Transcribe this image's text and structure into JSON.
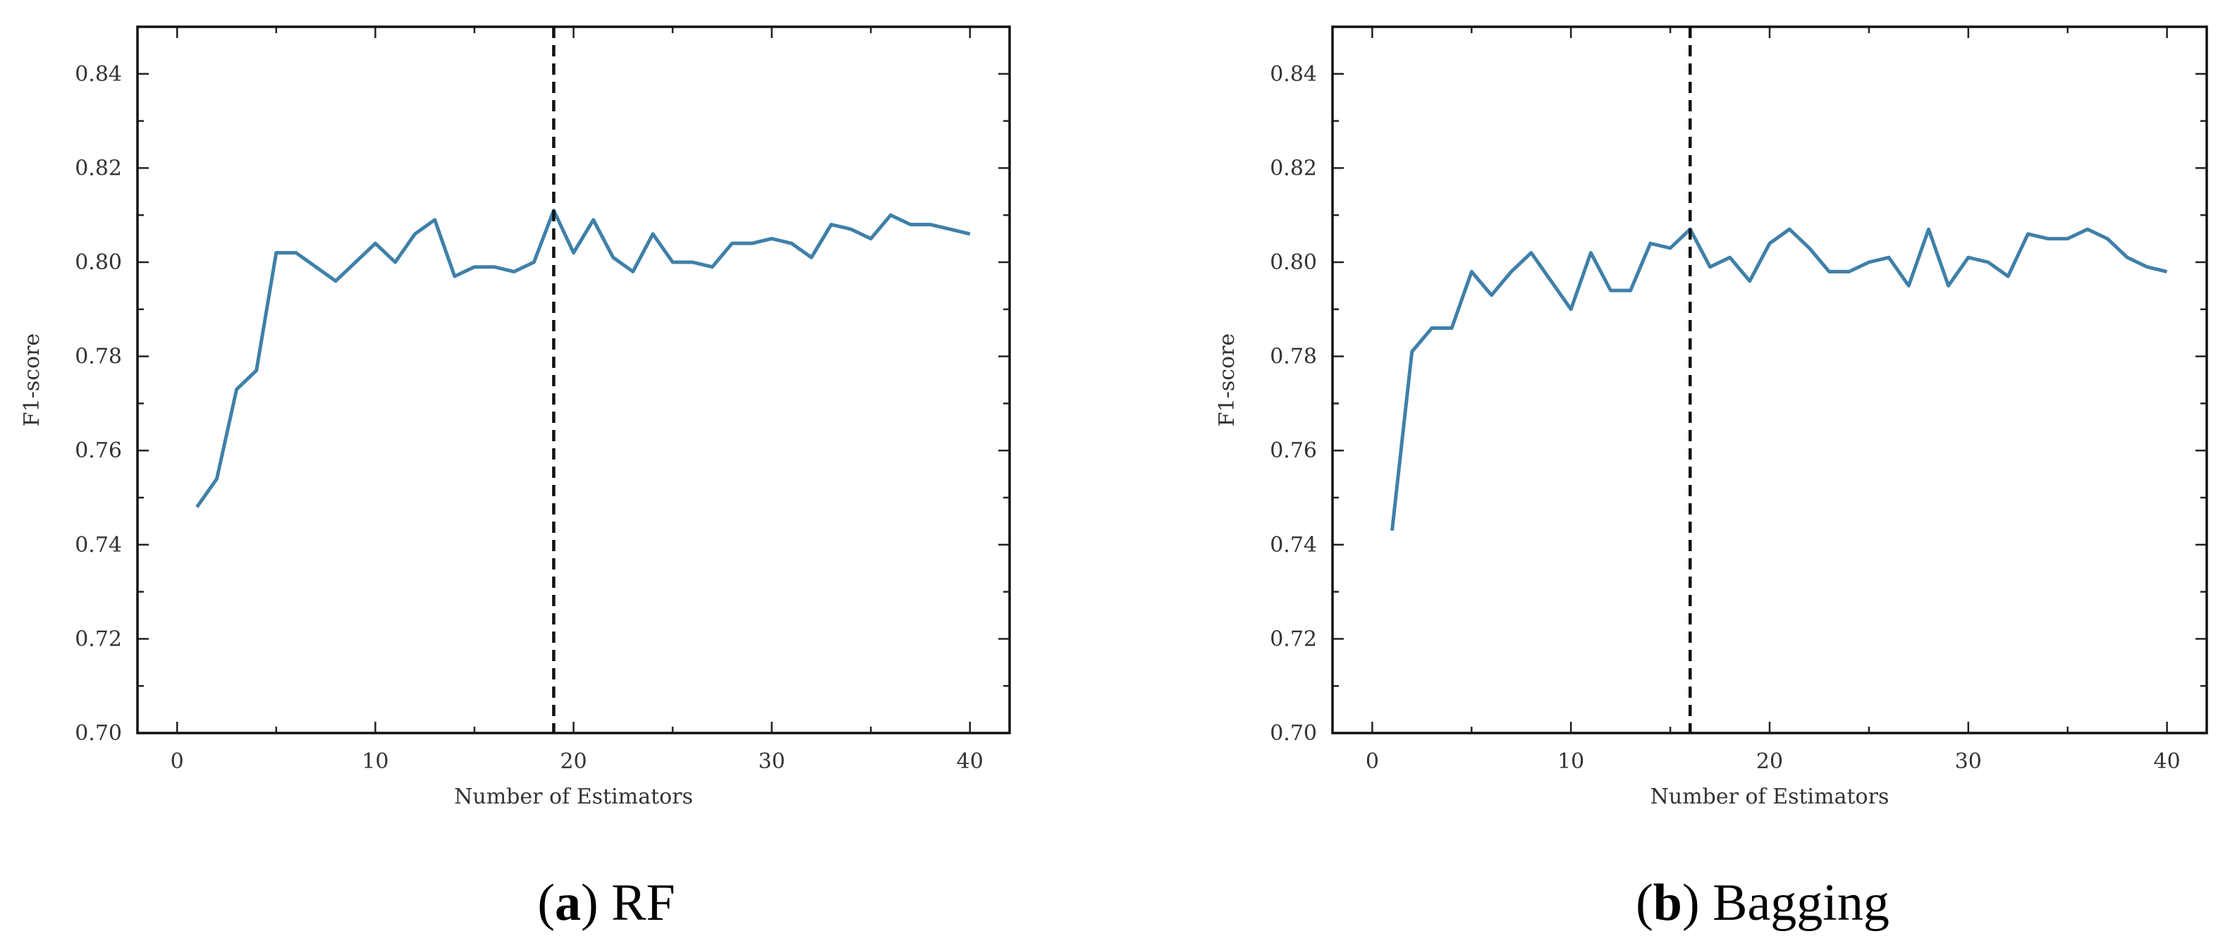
{
  "chart_data": [
    {
      "type": "line",
      "caption_letter": "a",
      "caption_text": "RF",
      "xlabel": "Number of Estimators",
      "ylabel": "F1-score",
      "xlim": [
        -2,
        42
      ],
      "ylim": [
        0.7,
        0.85
      ],
      "xticks": [
        0,
        10,
        20,
        30,
        40
      ],
      "yticks": [
        0.7,
        0.72,
        0.74,
        0.76,
        0.78,
        0.8,
        0.82,
        0.84
      ],
      "vline_x": 19,
      "line_color": "#3f80a8",
      "x": [
        1,
        2,
        3,
        4,
        5,
        6,
        7,
        8,
        9,
        10,
        11,
        12,
        13,
        14,
        15,
        16,
        17,
        18,
        19,
        20,
        21,
        22,
        23,
        24,
        25,
        26,
        27,
        28,
        29,
        30,
        31,
        32,
        33,
        34,
        35,
        36,
        37,
        38,
        39,
        40
      ],
      "values": [
        0.748,
        0.754,
        0.773,
        0.777,
        0.802,
        0.802,
        0.799,
        0.796,
        0.8,
        0.804,
        0.8,
        0.806,
        0.809,
        0.797,
        0.799,
        0.799,
        0.798,
        0.8,
        0.811,
        0.802,
        0.809,
        0.801,
        0.798,
        0.806,
        0.8,
        0.8,
        0.799,
        0.804,
        0.804,
        0.805,
        0.804,
        0.801,
        0.808,
        0.807,
        0.805,
        0.81,
        0.808,
        0.808,
        0.807,
        0.806
      ]
    },
    {
      "type": "line",
      "caption_letter": "b",
      "caption_text": "Bagging",
      "xlabel": "Number of Estimators",
      "ylabel": "F1-score",
      "xlim": [
        -2,
        42
      ],
      "ylim": [
        0.7,
        0.85
      ],
      "xticks": [
        0,
        10,
        20,
        30,
        40
      ],
      "yticks": [
        0.7,
        0.72,
        0.74,
        0.76,
        0.78,
        0.8,
        0.82,
        0.84
      ],
      "vline_x": 16,
      "line_color": "#3f80a8",
      "x": [
        1,
        2,
        3,
        4,
        5,
        6,
        7,
        8,
        9,
        10,
        11,
        12,
        13,
        14,
        15,
        16,
        17,
        18,
        19,
        20,
        21,
        22,
        23,
        24,
        25,
        26,
        27,
        28,
        29,
        30,
        31,
        32,
        33,
        34,
        35,
        36,
        37,
        38,
        39,
        40
      ],
      "values": [
        0.743,
        0.781,
        0.786,
        0.786,
        0.798,
        0.793,
        0.798,
        0.802,
        0.796,
        0.79,
        0.802,
        0.794,
        0.794,
        0.804,
        0.803,
        0.807,
        0.799,
        0.801,
        0.796,
        0.804,
        0.807,
        0.803,
        0.798,
        0.798,
        0.8,
        0.801,
        0.795,
        0.807,
        0.795,
        0.801,
        0.8,
        0.797,
        0.806,
        0.805,
        0.805,
        0.807,
        0.805,
        0.801,
        0.799,
        0.798
      ]
    }
  ]
}
